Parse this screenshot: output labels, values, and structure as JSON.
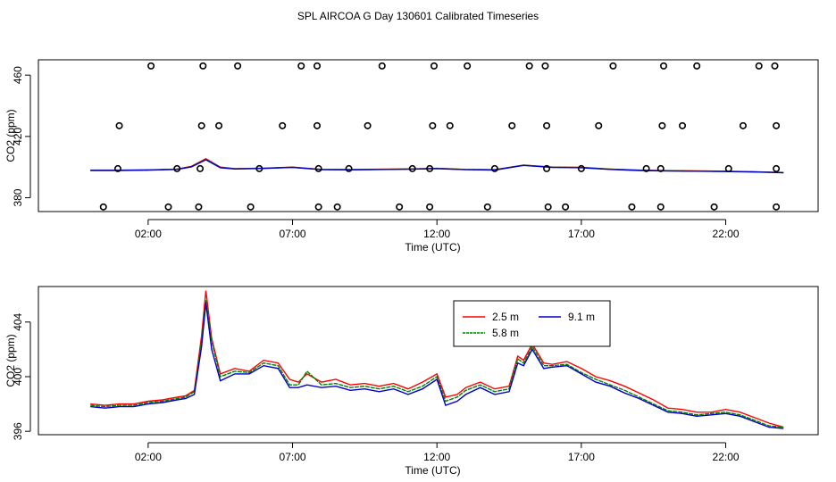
{
  "page_title": "SPL AIRCOA G  Day 130601  Calibrated Timeseries",
  "chart_data": [
    {
      "type": "line",
      "id": "top",
      "xlabel": "Time (UTC)",
      "ylabel": "CO2 (ppm)",
      "xlim": [
        -1.8,
        25.2
      ],
      "ylim": [
        371,
        470
      ],
      "xticks": [
        2,
        7,
        12,
        17,
        22
      ],
      "xtick_labels": [
        "02:00",
        "07:00",
        "12:00",
        "17:00",
        "22:00"
      ],
      "yticks": [
        380,
        420,
        460
      ],
      "ytick_labels": [
        "380",
        "420",
        "460"
      ],
      "series": [
        {
          "name": "2.5 m",
          "color": "#ff0000",
          "x": [
            0,
            1,
            2,
            3,
            3.5,
            4,
            4.5,
            5,
            6,
            7,
            8,
            9,
            10,
            11,
            12,
            13,
            14,
            15,
            16,
            17,
            18,
            19,
            20,
            21,
            22,
            23,
            24
          ],
          "y": [
            398,
            398,
            398.2,
            398.7,
            400.5,
            405.5,
            400,
            399,
            399.3,
            400,
            398.5,
            398.4,
            398.6,
            398.8,
            399.2,
            398.5,
            398.3,
            401.3,
            400,
            399.8,
            398.7,
            398,
            397.7,
            397.5,
            397.3,
            397,
            396.5
          ]
        },
        {
          "name": "5.8 m",
          "color": "#008000",
          "x": [
            0,
            1,
            2,
            3,
            3.5,
            4,
            4.5,
            5,
            6,
            7,
            8,
            9,
            10,
            11,
            12,
            13,
            14,
            15,
            16,
            17,
            18,
            19,
            20,
            21,
            22,
            23,
            24
          ],
          "y": [
            397.9,
            397.9,
            398.1,
            398.6,
            400.3,
            405,
            399.8,
            398.9,
            399.2,
            399.9,
            398.4,
            398.3,
            398.5,
            398.7,
            399.1,
            398.4,
            398.2,
            401.2,
            399.9,
            399.7,
            398.6,
            397.9,
            397.6,
            397.4,
            397.2,
            396.9,
            396.4
          ]
        },
        {
          "name": "9.1 m",
          "color": "#0000cc",
          "x": [
            0,
            1,
            2,
            3,
            3.5,
            4,
            4.5,
            5,
            6,
            7,
            8,
            9,
            10,
            11,
            12,
            13,
            14,
            15,
            16,
            17,
            18,
            19,
            20,
            21,
            22,
            23,
            24
          ],
          "y": [
            397.8,
            397.8,
            398,
            398.5,
            400.1,
            404.8,
            399.6,
            398.8,
            399.1,
            399.8,
            398.3,
            398.2,
            398.4,
            398.6,
            399,
            398.3,
            398.1,
            401.1,
            399.8,
            399.6,
            398.5,
            397.8,
            397.5,
            397.3,
            397.1,
            396.8,
            396.3
          ]
        }
      ],
      "calibration_points": {
        "x_hi": [
          2.1,
          3.9,
          5.1,
          7.3,
          7.85,
          10.1,
          11.9,
          13.05,
          15.2,
          15.75,
          18.1,
          19.85,
          21.0,
          23.15,
          23.7
        ],
        "y_hi": 466,
        "x_mid": [
          1.0,
          3.85,
          4.45,
          6.65,
          7.85,
          9.6,
          11.85,
          12.45,
          14.6,
          15.8,
          17.6,
          19.8,
          20.5,
          22.6,
          23.75
        ],
        "y_mid": 427,
        "x_ref": [
          0.95,
          3.0,
          3.8,
          5.85,
          7.9,
          8.95,
          11.15,
          11.75,
          14.0,
          15.8,
          17.0,
          19.25,
          19.75,
          22.1,
          23.75
        ],
        "y_ref": 399,
        "x_lo": [
          0.45,
          2.7,
          3.75,
          5.55,
          7.9,
          8.55,
          10.7,
          11.75,
          13.75,
          15.85,
          16.45,
          18.75,
          19.75,
          21.6,
          23.75
        ],
        "y_lo": 374
      }
    },
    {
      "type": "line",
      "id": "bottom",
      "xlabel": "Time (UTC)",
      "ylabel": "CO2 (ppm)",
      "xlim": [
        -1.8,
        25.2
      ],
      "ylim": [
        395.75,
        406.6
      ],
      "xticks": [
        2,
        7,
        12,
        17,
        22
      ],
      "xtick_labels": [
        "02:00",
        "07:00",
        "12:00",
        "17:00",
        "22:00"
      ],
      "yticks": [
        396,
        400,
        404
      ],
      "ytick_labels": [
        "396",
        "400",
        "404"
      ],
      "legend": {
        "position": "top-center",
        "entries": [
          "2.5 m",
          "5.8 m",
          "9.1 m"
        ]
      },
      "series": [
        {
          "name": "2.5 m",
          "color": "#ff0000",
          "x": [
            0,
            0.5,
            1,
            1.5,
            2,
            2.5,
            3,
            3.3,
            3.6,
            3.85,
            4.0,
            4.2,
            4.5,
            5,
            5.5,
            6,
            6.5,
            6.9,
            7.2,
            7.5,
            8,
            8.5,
            9,
            9.5,
            10,
            10.5,
            11,
            11.5,
            12,
            12.3,
            12.7,
            13,
            13.5,
            14,
            14.5,
            14.8,
            15,
            15.3,
            15.7,
            16,
            16.5,
            17,
            17.5,
            18,
            18.5,
            19,
            19.5,
            20,
            20.5,
            21,
            21.5,
            22,
            22.5,
            23,
            23.5,
            24
          ],
          "y": [
            398,
            397.9,
            398,
            398,
            398.2,
            398.3,
            398.5,
            398.6,
            399,
            403,
            406.3,
            402.8,
            400.2,
            400.6,
            400.4,
            401.2,
            401,
            399.8,
            399.6,
            400.2,
            399.6,
            399.8,
            399.4,
            399.5,
            399.3,
            399.5,
            399.1,
            399.6,
            400.2,
            398.5,
            398.7,
            399.2,
            399.6,
            399.1,
            399.3,
            401.5,
            401.2,
            402.4,
            401,
            400.9,
            401.1,
            400.6,
            400,
            399.7,
            399.3,
            398.8,
            398.3,
            397.7,
            397.6,
            397.4,
            397.4,
            397.6,
            397.4,
            397,
            396.6,
            396.3
          ]
        },
        {
          "name": "5.8 m",
          "color": "#008000",
          "x": [
            0,
            0.5,
            1,
            1.5,
            2,
            2.5,
            3,
            3.3,
            3.6,
            3.85,
            4.0,
            4.2,
            4.5,
            5,
            5.5,
            6,
            6.5,
            6.9,
            7.2,
            7.5,
            8,
            8.5,
            9,
            9.5,
            10,
            10.5,
            11,
            11.5,
            12,
            12.3,
            12.7,
            13,
            13.5,
            14,
            14.5,
            14.8,
            15,
            15.3,
            15.7,
            16,
            16.5,
            17,
            17.5,
            18,
            18.5,
            19,
            19.5,
            20,
            20.5,
            21,
            21.5,
            22,
            22.5,
            23,
            23.5,
            24
          ],
          "y": [
            397.9,
            397.8,
            397.9,
            397.9,
            398.1,
            398.2,
            398.4,
            398.5,
            398.9,
            402.6,
            405.6,
            402.6,
            400,
            400.4,
            400.3,
            401,
            400.8,
            399.4,
            399.4,
            400.4,
            399.4,
            399.5,
            399.2,
            399.3,
            399.1,
            399.3,
            398.9,
            399.3,
            400,
            398.2,
            398.5,
            399,
            399.4,
            398.9,
            399.1,
            401.3,
            401,
            402.2,
            400.8,
            400.8,
            400.9,
            400.3,
            399.8,
            399.4,
            399,
            398.5,
            398,
            397.5,
            397.4,
            397.2,
            397.3,
            397.4,
            397.2,
            396.8,
            396.4,
            396.3
          ]
        },
        {
          "name": "9.1 m",
          "color": "#0000cc",
          "x": [
            0,
            0.5,
            1,
            1.5,
            2,
            2.5,
            3,
            3.3,
            3.6,
            3.85,
            4.0,
            4.2,
            4.5,
            5,
            5.5,
            6,
            6.5,
            6.9,
            7.2,
            7.5,
            8,
            8.5,
            9,
            9.5,
            10,
            10.5,
            11,
            11.5,
            12,
            12.3,
            12.7,
            13,
            13.5,
            14,
            14.5,
            14.8,
            15,
            15.3,
            15.7,
            16,
            16.5,
            17,
            17.5,
            18,
            18.5,
            19,
            19.5,
            20,
            20.5,
            21,
            21.5,
            22,
            22.5,
            23,
            23.5,
            24
          ],
          "y": [
            397.8,
            397.7,
            397.8,
            397.8,
            398,
            398.1,
            398.3,
            398.4,
            398.7,
            402.2,
            405.4,
            402,
            399.7,
            400.2,
            400.2,
            400.8,
            400.6,
            399.2,
            399.2,
            399.4,
            399.2,
            399.3,
            399,
            399.1,
            398.9,
            399.1,
            398.7,
            399.1,
            399.8,
            397.9,
            398.2,
            398.7,
            399.2,
            398.7,
            398.9,
            401,
            400.8,
            402,
            400.6,
            400.7,
            400.8,
            400.2,
            399.6,
            399.3,
            398.8,
            398.4,
            397.9,
            397.4,
            397.3,
            397.1,
            397.2,
            397.3,
            397.1,
            396.7,
            396.3,
            396.2
          ]
        }
      ]
    }
  ]
}
